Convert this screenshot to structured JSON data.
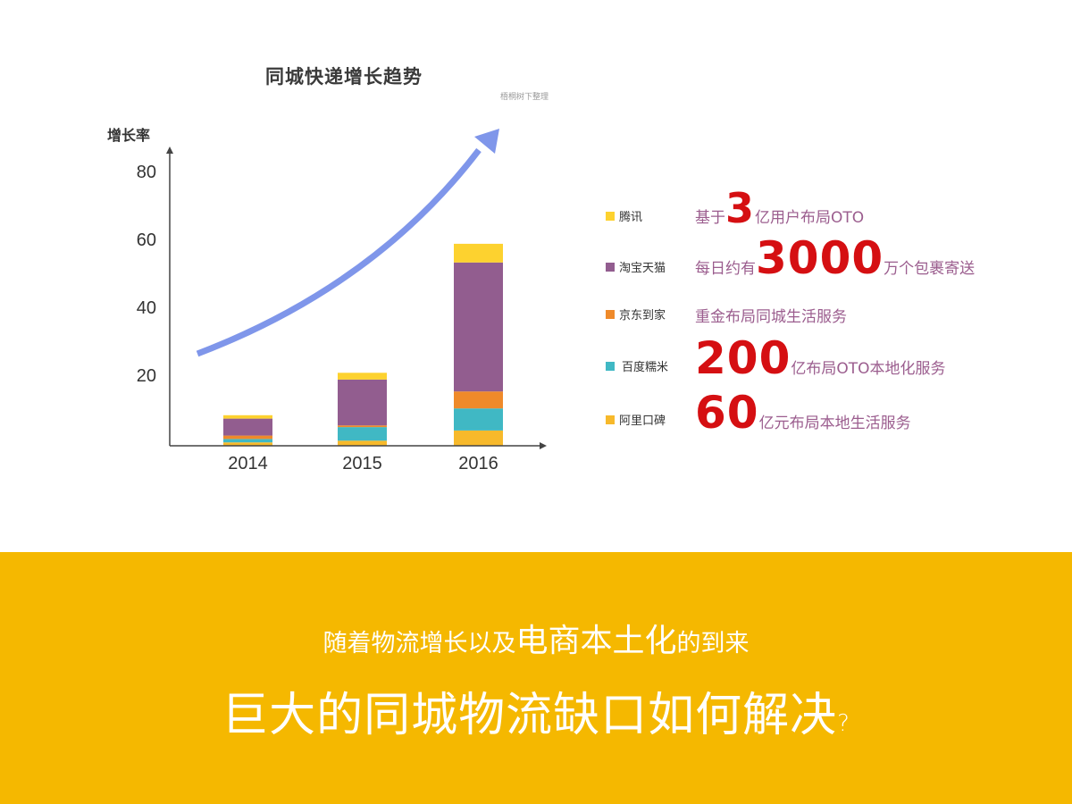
{
  "chart_data": {
    "type": "bar",
    "stacked": true,
    "title": "同城快递增长趋势",
    "source_note": "梧桐树下整理",
    "xlabel": "",
    "ylabel": "增长率",
    "ylim": [
      0,
      85
    ],
    "yticks": [
      20,
      40,
      60,
      80
    ],
    "categories": [
      "2014",
      "2015",
      "2016"
    ],
    "series": [
      {
        "name": "阿里口碑",
        "color": "#f7b92b",
        "values": [
          1,
          1.5,
          4.5
        ]
      },
      {
        "name": "百度糯米",
        "color": "#40b8c4",
        "values": [
          1,
          4,
          6.5
        ]
      },
      {
        "name": "京东到家",
        "color": "#ef8a2a",
        "values": [
          1,
          0.5,
          5
        ]
      },
      {
        "name": "淘宝天猫",
        "color": "#925d8f",
        "values": [
          5,
          13.5,
          38
        ]
      },
      {
        "name": "腾讯",
        "color": "#fdd22f",
        "values": [
          1,
          2,
          5.5
        ]
      }
    ],
    "totals": [
      9,
      21.5,
      59.5
    ],
    "trend_arrow": {
      "color": "#7f96ea",
      "direction": "up-right"
    },
    "grid": false,
    "legend_position": "right"
  },
  "legend": [
    {
      "label": "腾讯",
      "color": "#fdd22f",
      "pre": "基于",
      "big": "3",
      "post": "亿用户布局OTO"
    },
    {
      "label": "淘宝天猫",
      "color": "#925d8f",
      "pre": "每日约有",
      "big": "3000",
      "post": "万个包裹寄送"
    },
    {
      "label": "京东到家",
      "color": "#ef8a2a",
      "pre": "重金布局同城生活服务",
      "big": "",
      "post": ""
    },
    {
      "label": "百度糯米",
      "color": "#40b8c4",
      "pre": "",
      "big": "200",
      "post": "亿布局OTO本地化服务"
    },
    {
      "label": "阿里口碑",
      "color": "#f7b92b",
      "pre": "",
      "big": "60",
      "post": "亿元布局本地生活服务"
    }
  ],
  "banner": {
    "color": "#f5b800",
    "line1_a": "随着物流增长以及",
    "line1_em": "电商本土化",
    "line1_b": "的到来",
    "line2": "巨大的同城物流缺口如何解决",
    "line2_q": "?"
  }
}
